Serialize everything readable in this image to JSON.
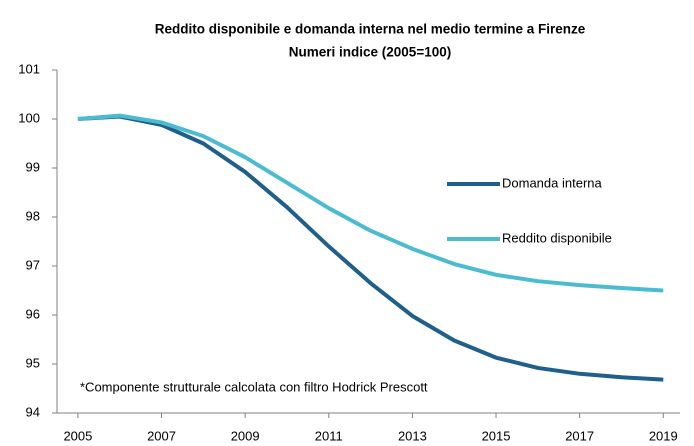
{
  "chart_data": {
    "type": "line",
    "title": "Reddito disponibile e domanda interna nel medio termine a Firenze",
    "subtitle": "Numeri indice (2005=100)",
    "annotation": "*Componente strutturale calcolata con filtro Hodrick Prescott",
    "x": [
      2005,
      2006,
      2007,
      2008,
      2009,
      2010,
      2011,
      2012,
      2013,
      2014,
      2015,
      2016,
      2017,
      2018,
      2019
    ],
    "series": [
      {
        "name": "Domanda interna",
        "color": "#1f5f8b",
        "values": [
          100,
          100.05,
          99.88,
          99.5,
          98.92,
          98.2,
          97.4,
          96.65,
          95.98,
          95.48,
          95.13,
          94.92,
          94.8,
          94.73,
          94.68
        ]
      },
      {
        "name": "Reddito disponibile",
        "color": "#4bbcd0",
        "values": [
          100,
          100.07,
          99.93,
          99.65,
          99.22,
          98.7,
          98.18,
          97.72,
          97.35,
          97.04,
          96.82,
          96.69,
          96.61,
          96.55,
          96.5
        ]
      }
    ],
    "xlim": [
      2004.5,
      2019.4
    ],
    "xticks": [
      2005,
      2007,
      2009,
      2011,
      2013,
      2015,
      2017,
      2019
    ],
    "ylim": [
      94,
      101
    ],
    "yticks": [
      94,
      95,
      96,
      97,
      98,
      99,
      100,
      101
    ],
    "grid": false
  }
}
